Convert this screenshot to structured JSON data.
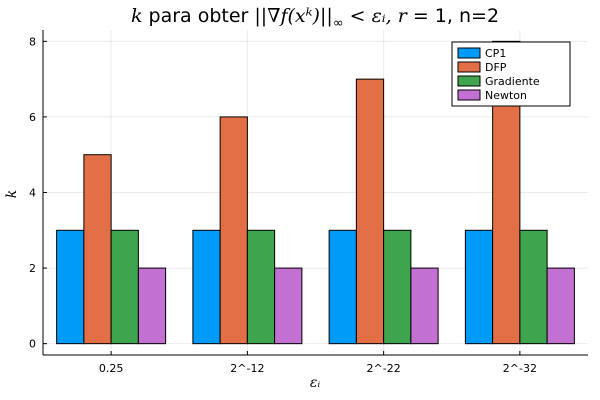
{
  "chart_data": {
    "type": "bar",
    "title_prefix": "k",
    "title_middle": " para obter ",
    "title_norm": "||∇f(xᵏ)||",
    "title_sub": "∞",
    "title_rest": " < εᵢ, ",
    "title_r": "r",
    "title_end": " = 1, n=2",
    "xlabel": "εᵢ",
    "ylabel": "k",
    "categories": [
      "0.25",
      "2^-12",
      "2^-22",
      "2^-32"
    ],
    "ylim": [
      -0.3,
      8.3
    ],
    "yticks": [
      0,
      2,
      4,
      6,
      8
    ],
    "grid": true,
    "legend_position": "top-right",
    "series": [
      {
        "name": "CP1",
        "color": "#009af9",
        "values": [
          3,
          3,
          3,
          3
        ]
      },
      {
        "name": "DFP",
        "color": "#e26f46",
        "values": [
          5,
          6,
          7,
          8
        ]
      },
      {
        "name": "Gradiente",
        "color": "#3ea44e",
        "values": [
          3,
          3,
          3,
          3
        ]
      },
      {
        "name": "Newton",
        "color": "#c271d2",
        "values": [
          2,
          2,
          2,
          2
        ]
      }
    ]
  }
}
